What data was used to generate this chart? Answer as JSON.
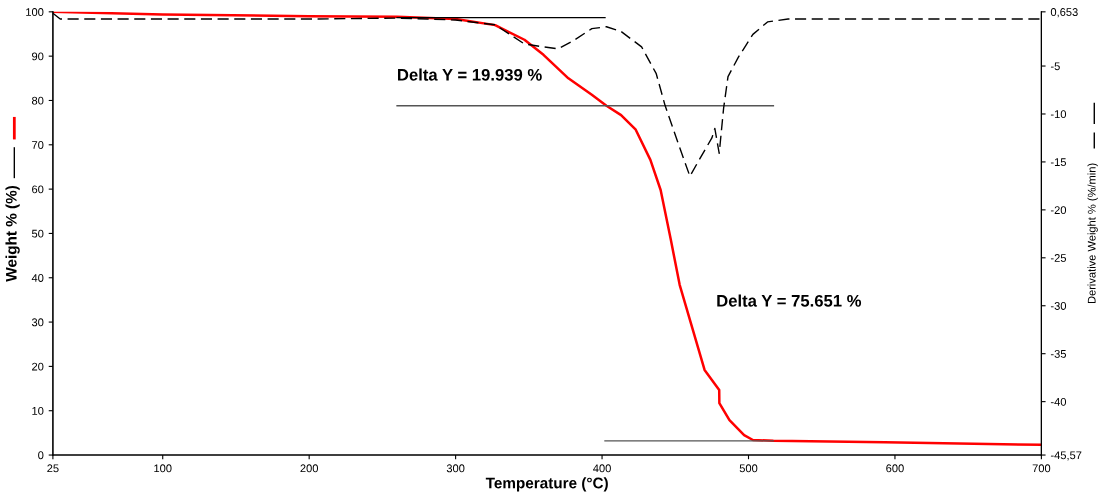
{
  "chart_data": {
    "type": "line",
    "xlabel": "Temperature (°C)",
    "ylabel": "Weight % (%)",
    "y2label": "Derivative Weight % (%/min)",
    "xlim": [
      25,
      700
    ],
    "xticks": [
      25,
      100,
      200,
      300,
      400,
      500,
      600,
      700
    ],
    "ylim": [
      0,
      100
    ],
    "yticks": [
      0,
      10,
      20,
      30,
      40,
      50,
      60,
      70,
      80,
      90,
      100
    ],
    "y2lim": [
      -45.57,
      0.653
    ],
    "y2ticks": [
      {
        "value": 0.653,
        "label": "0,653"
      },
      -5,
      -10,
      -15,
      -20,
      -25,
      -30,
      -35,
      -40,
      {
        "value": -45.57,
        "label": "-45,57"
      }
    ],
    "grid": false,
    "legend": false,
    "marker": "none",
    "series": [
      {
        "color": "#ff0000",
        "line_style": "solid",
        "x": [
          25,
          100,
          200,
          260,
          300,
          327,
          347,
          360,
          377,
          393,
          403,
          413,
          423,
          433,
          440,
          447,
          453,
          460,
          470,
          480,
          480.1,
          487,
          497,
          503,
          517,
          593,
          700
        ],
        "values": [
          100,
          99.4,
          99.0,
          98.9,
          98.4,
          97,
          93.7,
          90.3,
          85,
          81.3,
          78.8,
          76.7,
          73.4,
          66.6,
          59.8,
          48.5,
          38.4,
          30.5,
          19.2,
          14.7,
          11.7,
          7.9,
          4.5,
          3.4,
          3.2,
          2.9,
          2.3
        ]
      },
      {
        "color": "#000000",
        "line_style": "dashed",
        "axis": "y2",
        "x": [
          25,
          30,
          100,
          200,
          260,
          300,
          327,
          347,
          360,
          370,
          380,
          393,
          403,
          413,
          427,
          437,
          443,
          453,
          460,
          467,
          475,
          477,
          480,
          483,
          486,
          493,
          503,
          513,
          527,
          700
        ],
        "values": [
          0.5,
          -0.1,
          -0.1,
          -0.1,
          0.0,
          -0.2,
          -0.7,
          -2.7,
          -3.0,
          -3.2,
          -2.4,
          -1.1,
          -0.9,
          -1.4,
          -3.0,
          -5.8,
          -9.1,
          -13.5,
          -16.5,
          -14.6,
          -12.5,
          -11.5,
          -14.1,
          -9.4,
          -6.1,
          -4.1,
          -1.7,
          -0.4,
          -0.1,
          -0.1
        ]
      },
      {
        "color": "#000000",
        "line_style": "solid",
        "x": [
          260,
          402
        ],
        "values": [
          98.7,
          98.7
        ]
      },
      {
        "color": "#555555",
        "line_style": "solid",
        "x": [
          260,
          517
        ],
        "values": [
          78.8,
          78.8
        ]
      },
      {
        "color": "#555555",
        "line_style": "solid",
        "x": [
          402,
          517
        ],
        "values": [
          3.2,
          3.2
        ]
      }
    ],
    "annotations": [
      "Delta Y = 19.939 %",
      "Delta Y = 75.651 %"
    ]
  }
}
